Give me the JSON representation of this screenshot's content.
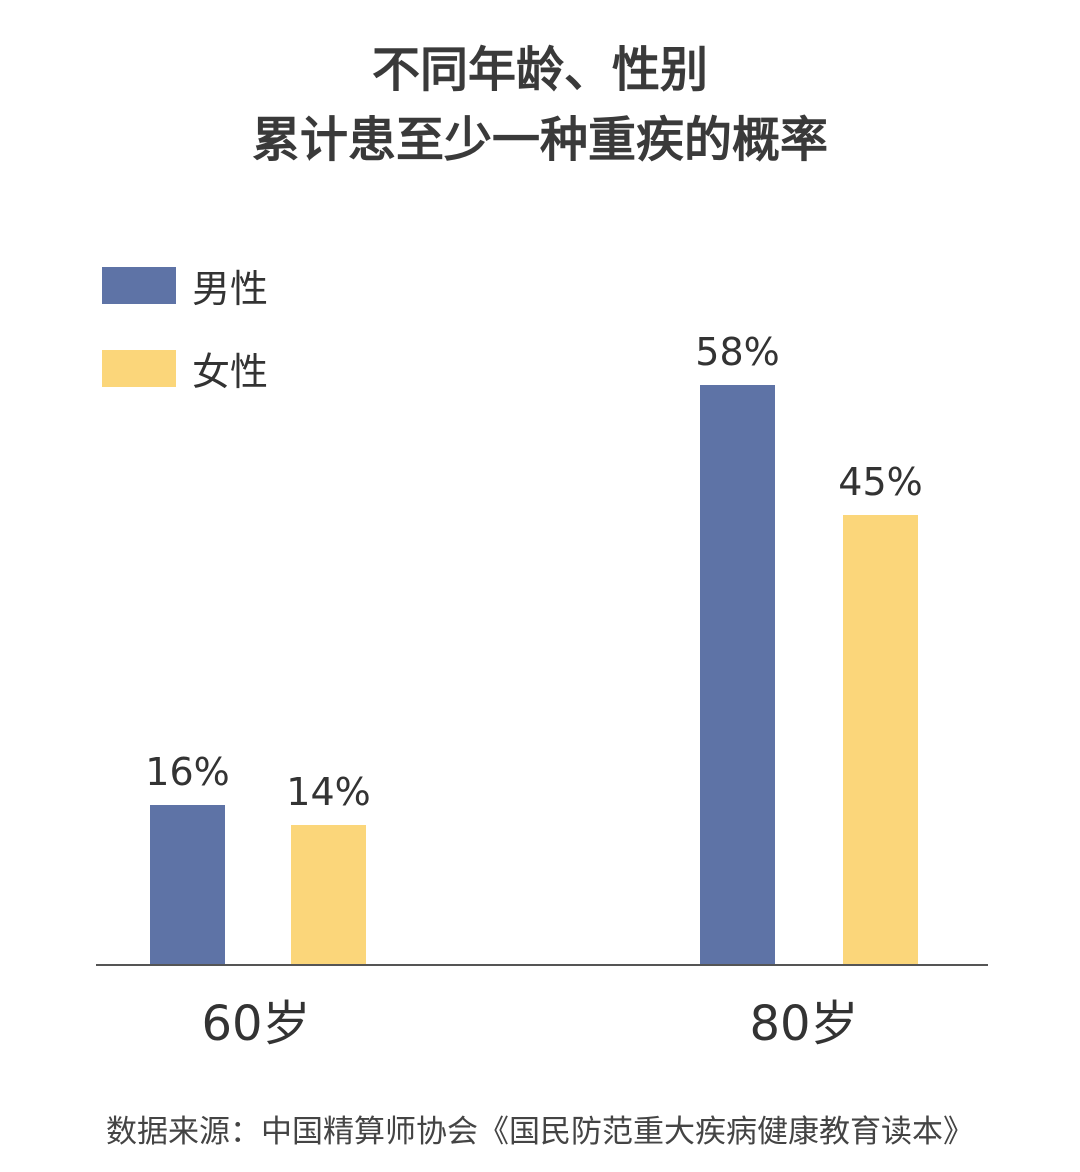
{
  "title": {
    "line1": "不同年龄、性别",
    "line2": "累计患至少一种重疾的概率"
  },
  "legend": {
    "male": "男性",
    "female": "女性"
  },
  "colors": {
    "male": "#5e73a6",
    "female": "#fbd67a",
    "axis": "#555555"
  },
  "source": "数据来源：中国精算师协会《国民防范重大疾病健康教育读本》",
  "chart_data": {
    "type": "bar",
    "categories": [
      "60岁",
      "80岁"
    ],
    "series": [
      {
        "name": "男性",
        "values": [
          16,
          58
        ],
        "labels": [
          "16%",
          "58%"
        ]
      },
      {
        "name": "女性",
        "values": [
          14,
          45
        ],
        "labels": [
          "14%",
          "45%"
        ]
      }
    ],
    "ylim": [
      0,
      60
    ],
    "grid": false,
    "legend_position": "top-left"
  }
}
